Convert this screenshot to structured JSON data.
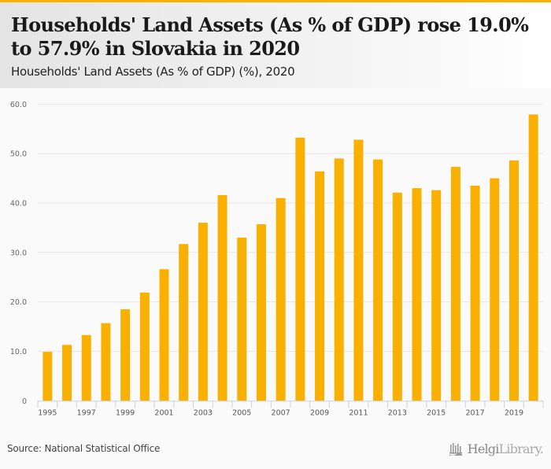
{
  "header": {
    "title": "Households' Land Assets (As % of GDP) rose 19.0% to 57.9% in Slovakia in 2020",
    "subtitle": "Households' Land Assets (As % of GDP) (%), 2020"
  },
  "footer": {
    "source": "Source: National Statistical Office",
    "logo_bold": "Helgi",
    "logo_light": "Library."
  },
  "colors": {
    "accent": "#f9b200",
    "bar": "#f9b000",
    "grid": "#e6e6e6",
    "axis": "#c8d3e6"
  },
  "chart_data": {
    "type": "bar",
    "title": "Households' Land Assets (As % of GDP) (%), 2020",
    "xlabel": "",
    "ylabel": "",
    "ylim": [
      0,
      60
    ],
    "yticks": [
      0,
      10,
      20,
      30,
      40,
      50,
      60
    ],
    "ytick_labels": [
      "0",
      "10.0",
      "20.0",
      "30.0",
      "40.0",
      "50.0",
      "60.0"
    ],
    "grid": true,
    "legend": "none",
    "categories": [
      "1995",
      "1996",
      "1997",
      "1998",
      "1999",
      "2000",
      "2001",
      "2002",
      "2003",
      "2004",
      "2005",
      "2006",
      "2007",
      "2008",
      "2009",
      "2010",
      "2011",
      "2012",
      "2013",
      "2014",
      "2015",
      "2016",
      "2017",
      "2018",
      "2019",
      "2020"
    ],
    "xtick_labels": [
      "1995",
      "",
      "1997",
      "",
      "1999",
      "",
      "2001",
      "",
      "2003",
      "",
      "2005",
      "",
      "2007",
      "",
      "2009",
      "",
      "2011",
      "",
      "2013",
      "",
      "2015",
      "",
      "2017",
      "",
      "2019",
      ""
    ],
    "values": [
      9.9,
      11.3,
      13.3,
      15.7,
      18.5,
      21.9,
      26.6,
      31.7,
      36.0,
      41.6,
      33.0,
      35.7,
      41.0,
      53.2,
      46.4,
      49.0,
      52.8,
      48.8,
      42.1,
      43.0,
      42.6,
      47.3,
      43.5,
      45.0,
      48.6,
      57.9
    ]
  }
}
